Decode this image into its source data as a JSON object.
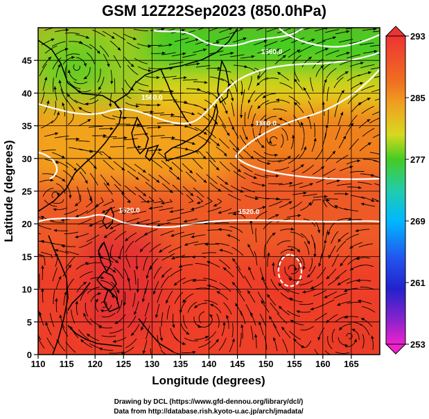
{
  "title": "GSM 12Z22Sep2023 (850.0hPa)",
  "x_axis": {
    "label": "Longitude (degrees)",
    "ticks": [
      110,
      115,
      120,
      125,
      130,
      135,
      140,
      145,
      150,
      155,
      160,
      165
    ],
    "range": [
      110,
      170
    ]
  },
  "y_axis": {
    "label": "Latitude  (degrees)",
    "ticks": [
      0,
      5,
      10,
      15,
      20,
      25,
      30,
      35,
      40,
      45
    ],
    "range": [
      0,
      50
    ]
  },
  "colorbar": {
    "labels": [
      "293",
      "285",
      "277",
      "269",
      "261",
      "253"
    ],
    "values": [
      293,
      285,
      277,
      269,
      261,
      253
    ],
    "colors": [
      "#ee3333",
      "#f0a020",
      "#44cc22",
      "#00b8ff",
      "#2222cc",
      "#dd22cc"
    ]
  },
  "contour_labels": [
    {
      "text": "1560.0",
      "lon": 151,
      "lat": 46
    },
    {
      "text": "1560.0",
      "lon": 130,
      "lat": 39
    },
    {
      "text": "1560.0",
      "lon": 150,
      "lat": 35
    },
    {
      "text": "1520.0",
      "lon": 126,
      "lat": 21.7
    },
    {
      "text": "1520.0",
      "lon": 147,
      "lat": 21.5
    }
  ],
  "credits": {
    "line1": "Drawing by DCL (https://www.gfd-dennou.org/library/dcl/)",
    "line2": "Data from http://database.rish.kyoto-u.ac.jp/arch/jmadata/"
  }
}
